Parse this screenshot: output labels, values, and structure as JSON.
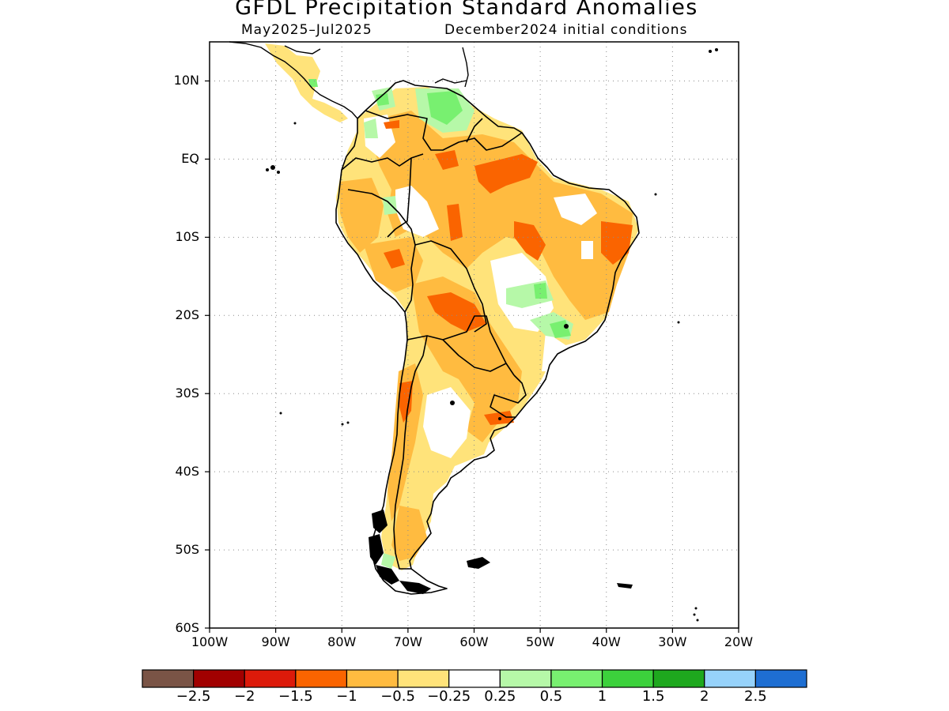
{
  "title": "GFDL Precipitation Standard Anomalies",
  "subtitle_left": "May2025–Jul2025",
  "subtitle_right": "December2024 initial conditions",
  "map": {
    "region": "South America",
    "lon_range": [
      -100,
      -20
    ],
    "lat_range": [
      -60,
      15
    ],
    "lat_ticks": [
      {
        "value": 10,
        "label": "10N"
      },
      {
        "value": 0,
        "label": "EQ"
      },
      {
        "value": -10,
        "label": "10S"
      },
      {
        "value": -20,
        "label": "20S"
      },
      {
        "value": -30,
        "label": "30S"
      },
      {
        "value": -40,
        "label": "40S"
      },
      {
        "value": -50,
        "label": "50S"
      },
      {
        "value": -60,
        "label": "60S"
      }
    ],
    "lon_ticks": [
      {
        "value": -100,
        "label": "100W"
      },
      {
        "value": -90,
        "label": "90W"
      },
      {
        "value": -80,
        "label": "80W"
      },
      {
        "value": -70,
        "label": "70W"
      },
      {
        "value": -60,
        "label": "60W"
      },
      {
        "value": -50,
        "label": "50W"
      },
      {
        "value": -40,
        "label": "40W"
      },
      {
        "value": -30,
        "label": "30W"
      },
      {
        "value": -20,
        "label": "20W"
      }
    ],
    "grid": "dotted"
  },
  "colorbar": {
    "colors": [
      "#7a5446",
      "#a10000",
      "#dc1a0a",
      "#fa6400",
      "#ffbb40",
      "#ffe37a",
      "#ffffff",
      "#b6f8a8",
      "#78f070",
      "#3cd13c",
      "#1ea81e",
      "#96d2fa",
      "#1e6ed2"
    ],
    "labels": [
      "−2.5",
      "−2",
      "−1.5",
      "−1",
      "−0.5",
      "−0.25",
      "0.25",
      "0.5",
      "1",
      "1.5",
      "2",
      "2.5"
    ]
  }
}
